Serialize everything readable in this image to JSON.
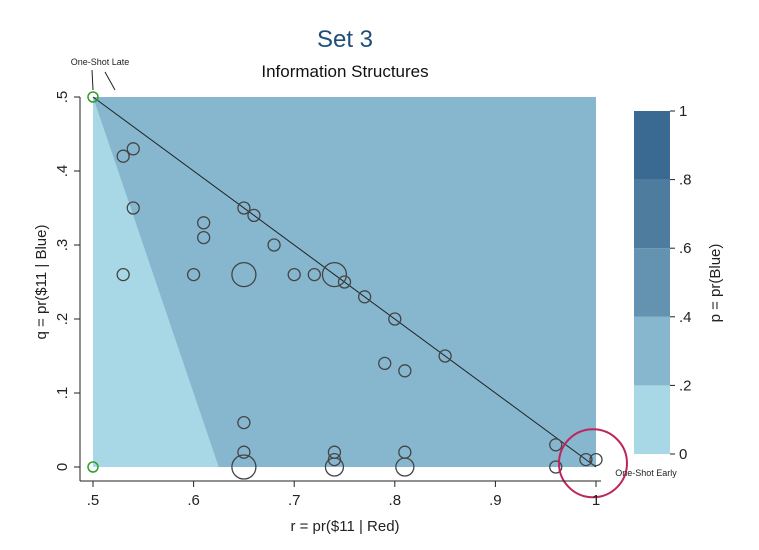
{
  "chart_data": {
    "type": "scatter",
    "title": "Set 3",
    "subtitle": "Information Structures",
    "xlabel": "r = pr($11 | Red)",
    "ylabel": "q = pr($11 | Blue)",
    "xlim": [
      0.5,
      1.0
    ],
    "ylim": [
      0,
      0.5
    ],
    "x_ticks": [
      0.5,
      0.6,
      0.7,
      0.8,
      0.9,
      1.0
    ],
    "x_tick_labels": [
      ".5",
      ".6",
      ".7",
      ".8",
      ".9",
      "1"
    ],
    "y_ticks": [
      0,
      0.1,
      0.2,
      0.3,
      0.4,
      0.5
    ],
    "y_tick_labels": [
      "0",
      ".1",
      ".2",
      ".3",
      ".4",
      ".5"
    ],
    "colorbar": {
      "label": "p = pr(Blue)",
      "ticks": [
        0,
        0.2,
        0.4,
        0.6,
        0.8,
        1.0
      ],
      "tick_labels": [
        "0",
        ".2",
        ".4",
        ".6",
        ".8",
        "1"
      ],
      "colors": [
        "#a8d8e6",
        "#86b7cf",
        "#6393b0",
        "#4d7c9f",
        "#3a6991",
        "#1e4a72"
      ]
    },
    "contour_levels": [
      0.2,
      0.4,
      0.6,
      0.8
    ],
    "reference_line": {
      "from": [
        0.5,
        0.5
      ],
      "to": [
        1.0,
        0.0
      ]
    },
    "points": [
      {
        "x": 0.53,
        "y": 0.42,
        "size": 1
      },
      {
        "x": 0.54,
        "y": 0.43,
        "size": 1
      },
      {
        "x": 0.54,
        "y": 0.35,
        "size": 1
      },
      {
        "x": 0.53,
        "y": 0.26,
        "size": 1
      },
      {
        "x": 0.6,
        "y": 0.26,
        "size": 1
      },
      {
        "x": 0.61,
        "y": 0.33,
        "size": 1
      },
      {
        "x": 0.61,
        "y": 0.31,
        "size": 1
      },
      {
        "x": 0.65,
        "y": 0.35,
        "size": 1
      },
      {
        "x": 0.66,
        "y": 0.34,
        "size": 1
      },
      {
        "x": 0.65,
        "y": 0.26,
        "size": 2
      },
      {
        "x": 0.68,
        "y": 0.3,
        "size": 1
      },
      {
        "x": 0.7,
        "y": 0.26,
        "size": 1
      },
      {
        "x": 0.72,
        "y": 0.26,
        "size": 1
      },
      {
        "x": 0.74,
        "y": 0.26,
        "size": 2
      },
      {
        "x": 0.75,
        "y": 0.25,
        "size": 1
      },
      {
        "x": 0.77,
        "y": 0.23,
        "size": 1
      },
      {
        "x": 0.8,
        "y": 0.2,
        "size": 1
      },
      {
        "x": 0.85,
        "y": 0.15,
        "size": 1
      },
      {
        "x": 0.79,
        "y": 0.14,
        "size": 1
      },
      {
        "x": 0.81,
        "y": 0.13,
        "size": 1
      },
      {
        "x": 0.65,
        "y": 0.06,
        "size": 1
      },
      {
        "x": 0.65,
        "y": 0.02,
        "size": 1
      },
      {
        "x": 0.65,
        "y": 0.0,
        "size": 2
      },
      {
        "x": 0.74,
        "y": 0.02,
        "size": 1
      },
      {
        "x": 0.74,
        "y": 0.01,
        "size": 1
      },
      {
        "x": 0.74,
        "y": 0.0,
        "size": 1.5
      },
      {
        "x": 0.81,
        "y": 0.02,
        "size": 1
      },
      {
        "x": 0.81,
        "y": 0.0,
        "size": 1.5
      },
      {
        "x": 0.96,
        "y": 0.03,
        "size": 1
      },
      {
        "x": 0.96,
        "y": 0.0,
        "size": 1
      },
      {
        "x": 0.99,
        "y": 0.01,
        "size": 1
      },
      {
        "x": 1.0,
        "y": 0.01,
        "size": 1
      }
    ],
    "highlight_points": [
      {
        "x": 0.5,
        "y": 0.5,
        "color": "#2ca02c"
      },
      {
        "x": 0.5,
        "y": 0.0,
        "color": "#2ca02c"
      }
    ],
    "highlight_circle": {
      "x": 0.997,
      "y": 0.005,
      "color": "#c0245c"
    },
    "annotations": [
      {
        "text": "One-Shot Late",
        "x": 0.5,
        "y": 0.5
      },
      {
        "text": "One-Shot Early",
        "x": 1.0,
        "y": 0.0
      }
    ]
  }
}
